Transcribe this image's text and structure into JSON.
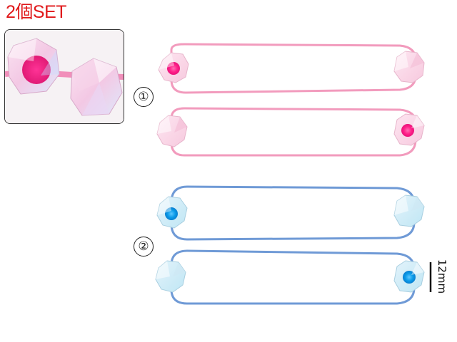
{
  "title": "2個SET",
  "markers": [
    "①",
    "②"
  ],
  "scale": {
    "label": "12mm"
  },
  "colors": {
    "title": "#e0191b",
    "pink_band": "#f29bbd",
    "blue_band": "#6f9ad6",
    "bead_core_pink": "#ff1f88",
    "bead_core_blue": "#0a9ae8"
  }
}
